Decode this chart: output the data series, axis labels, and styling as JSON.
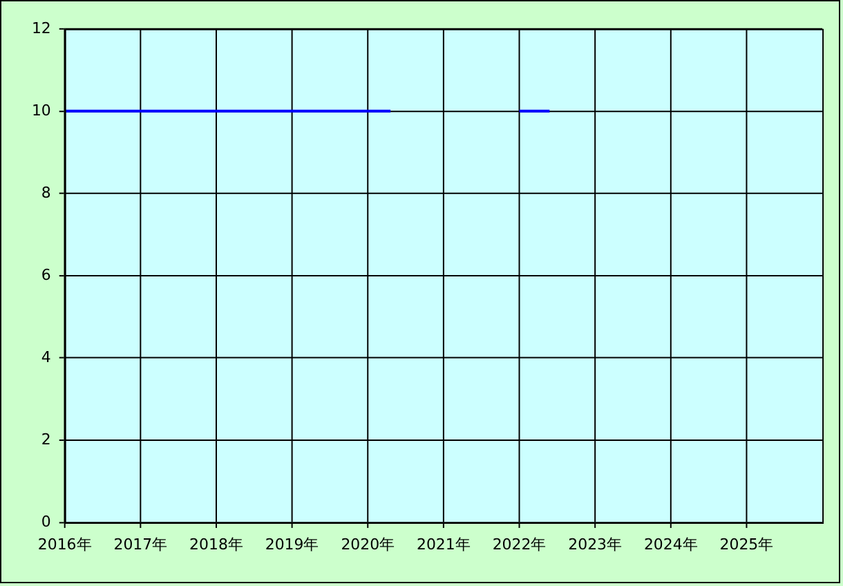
{
  "chart_data": {
    "type": "line",
    "x": [
      2016,
      2020.3,
      2021,
      2022,
      2022.4
    ],
    "series": [
      {
        "color": "#0000ff",
        "values": [
          10,
          10,
          null,
          10,
          10
        ]
      }
    ],
    "xlim": [
      2016,
      2026
    ],
    "xticks": [
      {
        "value": 2016,
        "label": "2016年"
      },
      {
        "value": 2017,
        "label": "2017年"
      },
      {
        "value": 2018,
        "label": "2018年"
      },
      {
        "value": 2019,
        "label": "2019年"
      },
      {
        "value": 2020,
        "label": "2020年"
      },
      {
        "value": 2021,
        "label": "2021年"
      },
      {
        "value": 2022,
        "label": "2022年"
      },
      {
        "value": 2023,
        "label": "2023年"
      },
      {
        "value": 2024,
        "label": "2024年"
      },
      {
        "value": 2025,
        "label": "2025年"
      }
    ],
    "ylim": [
      0,
      12
    ],
    "yticks": [
      0,
      2,
      4,
      6,
      8,
      10,
      12
    ],
    "grid": true,
    "marker": "none",
    "line_style": "solid"
  }
}
